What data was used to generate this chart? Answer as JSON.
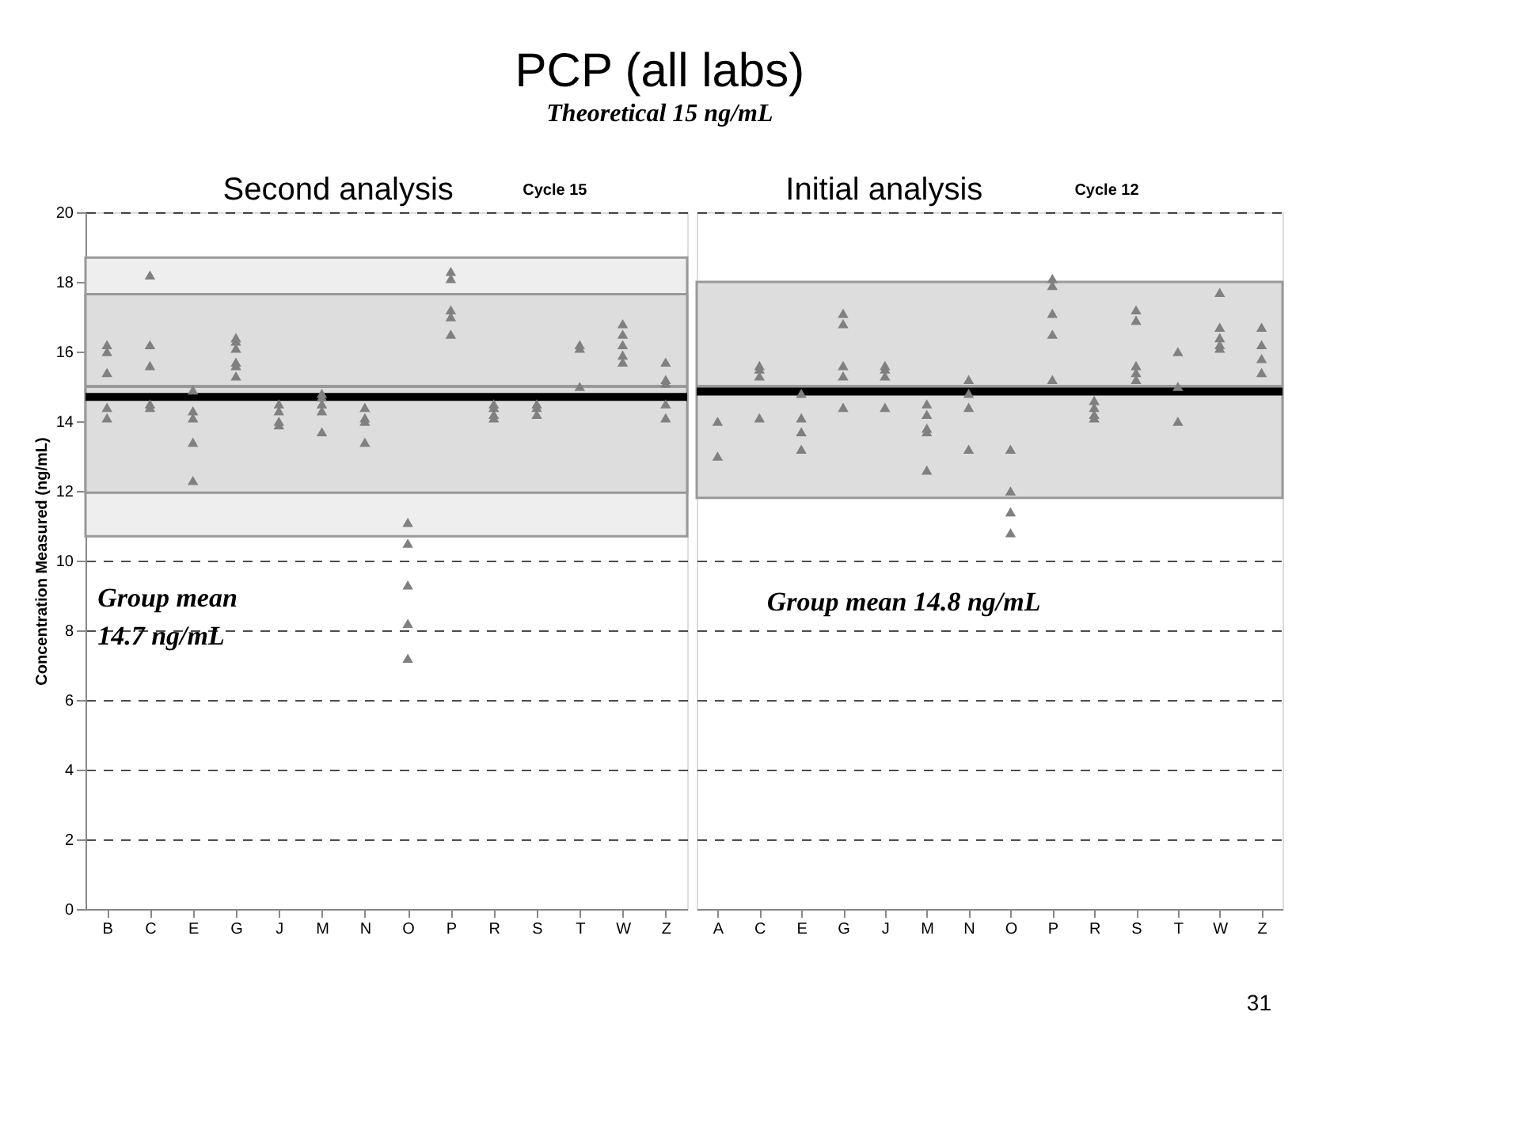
{
  "chart_data": [
    {
      "type": "scatter",
      "title": "PCP (all labs)",
      "subtitle": "Theoretical 15 ng/mL",
      "ylabel": "Concentration Measured (ng/mL)",
      "categories": [
        "B",
        "C",
        "E",
        "G",
        "J",
        "M",
        "N",
        "O",
        "P",
        "R",
        "S",
        "T",
        "W",
        "Z"
      ],
      "series": [
        {
          "color": "#808080",
          "x": [
            "B",
            "B",
            "B",
            "B",
            "B",
            "C",
            "C",
            "C",
            "C",
            "C",
            "E",
            "E",
            "E",
            "E",
            "E",
            "G",
            "G",
            "G",
            "G",
            "G",
            "G",
            "J",
            "J",
            "J",
            "J",
            "M",
            "M",
            "M",
            "M",
            "M",
            "N",
            "N",
            "N",
            "N",
            "O",
            "O",
            "O",
            "O",
            "O",
            "P",
            "P",
            "P",
            "P",
            "P",
            "R",
            "R",
            "R",
            "R",
            "S",
            "S",
            "S",
            "T",
            "T",
            "T",
            "W",
            "W",
            "W",
            "W",
            "W",
            "Z",
            "Z",
            "Z",
            "Z",
            "Z"
          ],
          "values": [
            16.2,
            16.0,
            15.4,
            14.4,
            14.1,
            18.2,
            16.2,
            15.6,
            14.5,
            14.4,
            14.9,
            14.3,
            14.1,
            13.4,
            12.3,
            16.4,
            16.3,
            16.1,
            15.7,
            15.6,
            15.3,
            14.5,
            14.3,
            14.0,
            13.9,
            14.8,
            14.7,
            14.5,
            14.3,
            13.7,
            14.4,
            14.1,
            14.0,
            13.4,
            11.1,
            10.5,
            9.3,
            8.2,
            7.2,
            18.3,
            18.1,
            17.2,
            17.0,
            16.5,
            14.5,
            14.4,
            14.2,
            14.1,
            14.5,
            14.4,
            14.2,
            16.2,
            16.1,
            15.0,
            16.8,
            16.5,
            16.2,
            15.9,
            15.7,
            15.7,
            15.2,
            15.1,
            14.5,
            14.1
          ]
        }
      ],
      "ylim": [
        0,
        20
      ],
      "yticks": [
        0,
        2,
        4,
        6,
        8,
        10,
        12,
        14,
        16,
        18,
        20
      ],
      "grid": "y",
      "marker": "triangle",
      "bands": [
        {
          "axis": "y",
          "from": 10.7,
          "to": 18.7,
          "color": "#eeeeee"
        },
        {
          "axis": "y",
          "from": 11.95,
          "to": 17.65,
          "color": "#dddddd"
        }
      ],
      "ref_lines": [
        {
          "axis": "y",
          "value": 15,
          "color": "#999999"
        },
        {
          "axis": "y",
          "value": 14.7,
          "color": "#000000"
        }
      ],
      "annotations": [
        "Second analysis",
        "Cycle 15",
        "Group mean\n14.7 ng/mL"
      ]
    },
    {
      "type": "scatter",
      "tick_labels": "x",
      "categories": [
        "A",
        "C",
        "E",
        "G",
        "J",
        "M",
        "N",
        "O",
        "P",
        "R",
        "S",
        "T",
        "W",
        "Z"
      ],
      "series": [
        {
          "color": "#808080",
          "x": [
            "A",
            "A",
            "C",
            "C",
            "C",
            "C",
            "E",
            "E",
            "E",
            "E",
            "G",
            "G",
            "G",
            "G",
            "G",
            "J",
            "J",
            "J",
            "J",
            "M",
            "M",
            "M",
            "M",
            "M",
            "N",
            "N",
            "N",
            "N",
            "O",
            "O",
            "O",
            "O",
            "P",
            "P",
            "P",
            "P",
            "P",
            "R",
            "R",
            "R",
            "R",
            "S",
            "S",
            "S",
            "S",
            "S",
            "T",
            "T",
            "T",
            "W",
            "W",
            "W",
            "W",
            "W",
            "Z",
            "Z",
            "Z",
            "Z"
          ],
          "values": [
            14.0,
            13.0,
            15.6,
            15.5,
            15.3,
            14.1,
            14.8,
            14.1,
            13.7,
            13.2,
            17.1,
            16.8,
            15.6,
            15.3,
            14.4,
            15.6,
            15.5,
            15.3,
            14.4,
            14.5,
            14.2,
            13.8,
            13.7,
            12.6,
            15.2,
            14.8,
            14.4,
            13.2,
            13.2,
            12.0,
            11.4,
            10.8,
            18.1,
            17.9,
            17.1,
            16.5,
            15.2,
            14.6,
            14.4,
            14.2,
            14.1,
            17.2,
            16.9,
            15.6,
            15.4,
            15.2,
            16.0,
            15.0,
            14.0,
            17.7,
            16.7,
            16.4,
            16.2,
            16.1,
            16.7,
            16.2,
            15.8,
            15.4
          ]
        }
      ],
      "ylim": [
        0,
        20
      ],
      "yticks": [
        0,
        2,
        4,
        6,
        8,
        10,
        12,
        14,
        16,
        18,
        20
      ],
      "grid": "y",
      "marker": "triangle",
      "bands": [
        {
          "axis": "y",
          "from": 11.8,
          "to": 18.0,
          "color": "#dddddd"
        }
      ],
      "ref_lines": [
        {
          "axis": "y",
          "value": 15,
          "color": "#999999"
        },
        {
          "axis": "y",
          "value": 14.85,
          "color": "#000000"
        }
      ],
      "annotations": [
        "Initial analysis",
        "Cycle 12",
        "Group mean 14.8 ng/mL",
        "31"
      ]
    }
  ]
}
